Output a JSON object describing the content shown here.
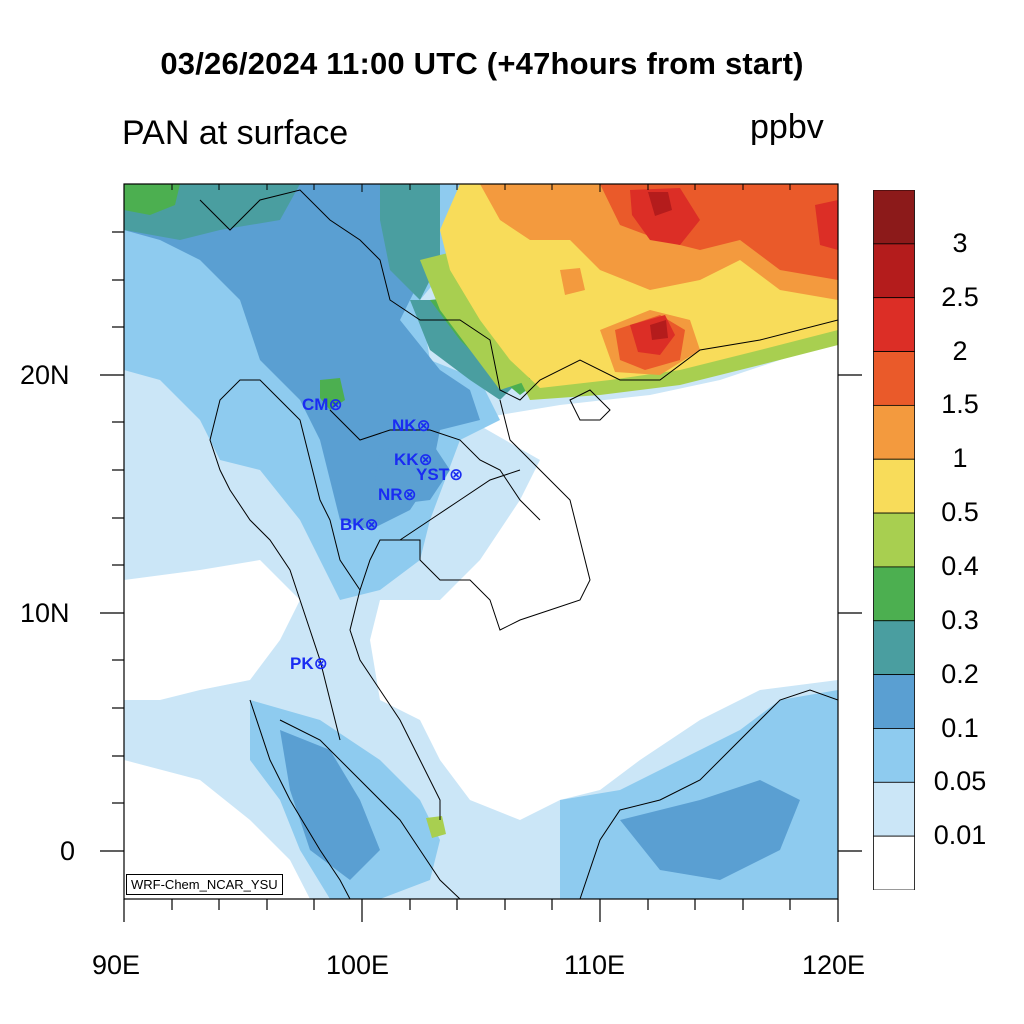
{
  "title": "03/26/2024 11:00 UTC (+47hours from start)",
  "subtitle_left": "PAN at surface",
  "subtitle_right": "ppbv",
  "credit": "WRF-Chem_NCAR_YSU",
  "axes": {
    "lon_ticks": [
      "90E",
      "100E",
      "110E",
      "120E"
    ],
    "lat_ticks": [
      "20N",
      "10N",
      "0"
    ]
  },
  "colorbar": {
    "labels": [
      "3",
      "2.5",
      "2",
      "1.5",
      "1",
      "0.5",
      "0.4",
      "0.3",
      "0.2",
      "0.1",
      "0.05",
      "0.01"
    ],
    "colors": [
      "#8c1a1a",
      "#b41c1c",
      "#dc2e26",
      "#ea5a2a",
      "#f39a3e",
      "#f8dc5a",
      "#a8cf50",
      "#4caf50",
      "#4a9ea0",
      "#5a9fd2",
      "#8ecbef",
      "#cbe6f7",
      "#ffffff"
    ]
  },
  "stations": [
    {
      "name": "CM",
      "label": "CM⊗"
    },
    {
      "name": "NK",
      "label": "NK⊗"
    },
    {
      "name": "KK",
      "label": "KK⊗"
    },
    {
      "name": "YST",
      "label": "YST⊗"
    },
    {
      "name": "NR",
      "label": "NR⊗"
    },
    {
      "name": "BK",
      "label": "BK⊗"
    },
    {
      "name": "PK",
      "label": "PK⊗"
    }
  ]
}
